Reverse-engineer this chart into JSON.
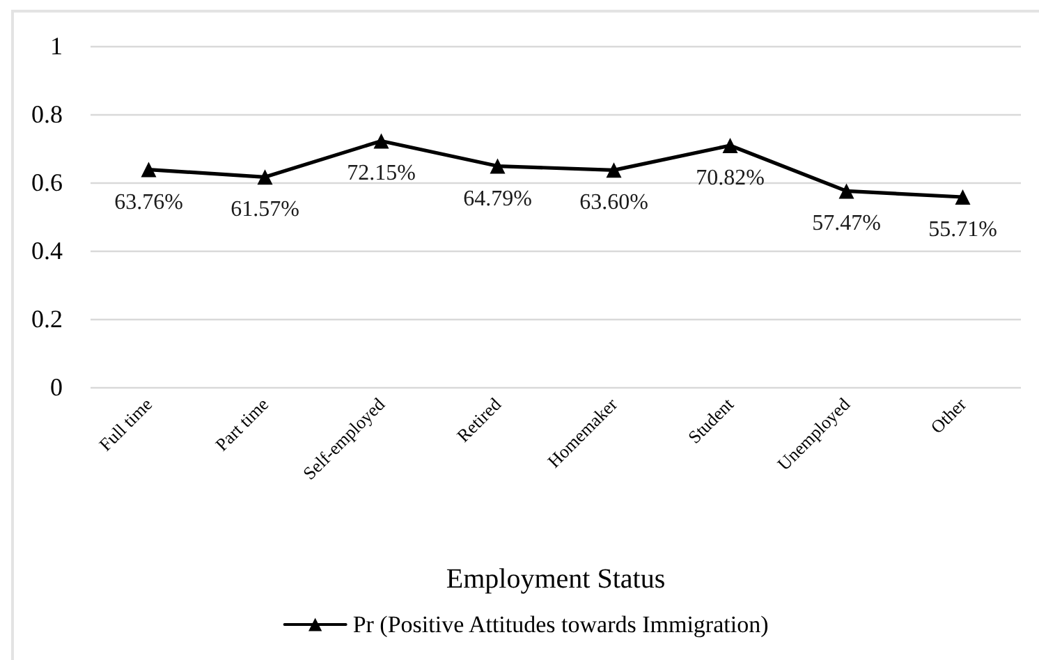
{
  "chart_data": {
    "type": "line",
    "xlabel": "Employment Status",
    "categories": [
      "Full time",
      "Part time",
      "Self-employed",
      "Retired",
      "Homemaker",
      "Student",
      "Unemployed",
      "Other"
    ],
    "series": [
      {
        "name": "Pr (Positive Attitudes towards Immigration)",
        "color": "#000000",
        "values": [
          0.6376,
          0.6157,
          0.7215,
          0.6479,
          0.636,
          0.7082,
          0.5747,
          0.5571
        ],
        "value_labels": [
          "63.76%",
          "61.57%",
          "72.15%",
          "64.79%",
          "63.60%",
          "70.82%",
          "57.47%",
          "55.71%"
        ]
      }
    ],
    "ylim": [
      0,
      1
    ],
    "yticks": [
      0,
      0.2,
      0.4,
      0.6,
      0.8,
      1
    ],
    "grid": "y",
    "legend": "bottom",
    "marker": "triangle",
    "line_style": "solid"
  }
}
